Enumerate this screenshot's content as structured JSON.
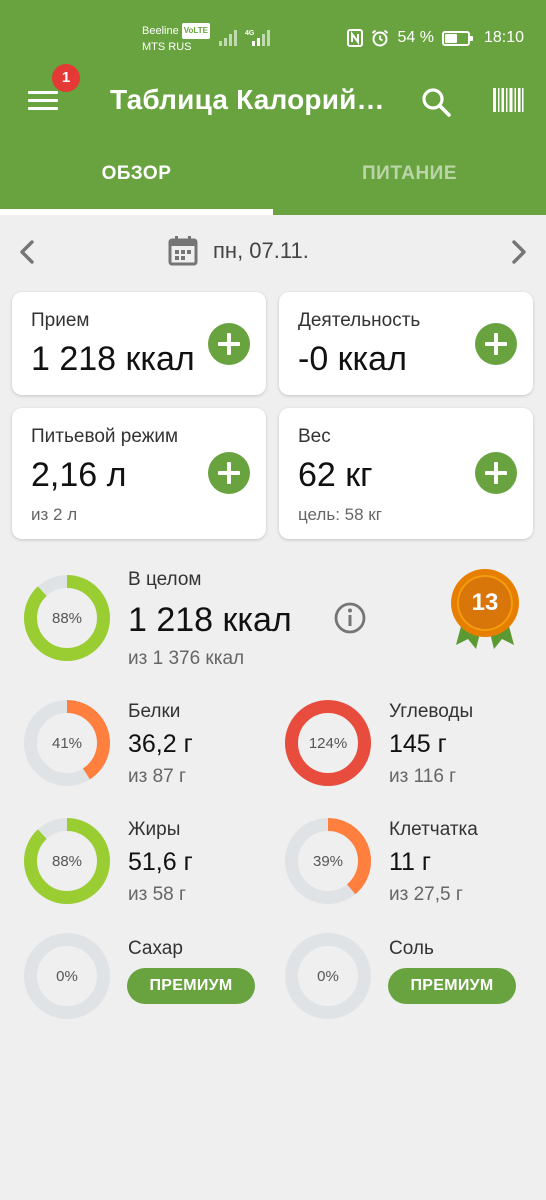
{
  "status_bar": {
    "carrier1": "Beeline",
    "volte": "VoLTE",
    "carrier2": "MTS RUS",
    "signal_label": "4G",
    "battery": "54 %",
    "time": "18:10"
  },
  "app_bar": {
    "notification_count": "1",
    "title": "Таблица Калорий…"
  },
  "tabs": [
    {
      "label": "ОБЗОР",
      "active": true
    },
    {
      "label": "ПИТАНИЕ",
      "active": false
    }
  ],
  "date": "пн, 07.11.",
  "cards": {
    "intake": {
      "label": "Прием",
      "value": "1 218 ккал"
    },
    "activity": {
      "label": "Деятельность",
      "value": "-0 ккал"
    },
    "water": {
      "label": "Питьевой режим",
      "value": "2,16 л",
      "sub": "из 2 л"
    },
    "weight": {
      "label": "Вес",
      "value": "62 кг",
      "sub": "цель: 58 кг"
    }
  },
  "summary": {
    "percent": "88%",
    "progress": 0.88,
    "label": "В целом",
    "value": "1 218 ккал",
    "sub": "из 1 376 ккал",
    "medal": "13"
  },
  "nutrients": {
    "protein": {
      "label": "Белки",
      "percent": "41%",
      "progress": 0.41,
      "value": "36,2 г",
      "sub": "из 87 г",
      "color": "#ff7f3f"
    },
    "carbs": {
      "label": "Углеводы",
      "percent": "124%",
      "progress": 1.0,
      "value": "145 г",
      "sub": "из 116 г",
      "color": "#e74c3c"
    },
    "fat": {
      "label": "Жиры",
      "percent": "88%",
      "progress": 0.88,
      "value": "51,6 г",
      "sub": "из 58 г",
      "color": "#9acd32"
    },
    "fiber": {
      "label": "Клетчатка",
      "percent": "39%",
      "progress": 0.39,
      "value": "11 г",
      "sub": "из 27,5 г",
      "color": "#ff7f3f"
    },
    "sugar": {
      "label": "Сахар",
      "percent": "0%",
      "progress": 0,
      "button": "ПРЕМИУМ"
    },
    "salt": {
      "label": "Соль",
      "percent": "0%",
      "progress": 0,
      "button": "ПРЕМИУМ"
    }
  },
  "colors": {
    "accent": "#68a33f",
    "ring_track": "#dfe3e6",
    "summary_ring": "#9acd32",
    "medal": "#e67e00"
  }
}
